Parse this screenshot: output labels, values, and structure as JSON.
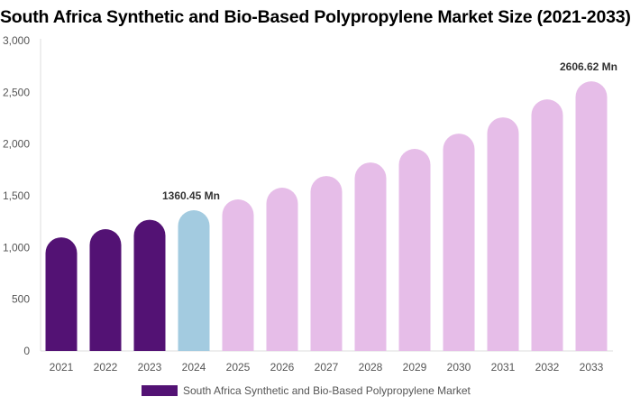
{
  "chart_data": {
    "type": "bar",
    "title": "South Africa Synthetic and Bio-Based Polypropylene Market Size (2021-2033)",
    "categories": [
      "2021",
      "2022",
      "2023",
      "2024",
      "2025",
      "2026",
      "2027",
      "2028",
      "2029",
      "2030",
      "2031",
      "2032",
      "2033"
    ],
    "series": [
      {
        "name": "South Africa Synthetic and Bio-Based Polypropylene Market",
        "values": [
          1098,
          1177,
          1268,
          1360.45,
          1465,
          1578,
          1691,
          1822,
          1953,
          2101,
          2258,
          2432,
          2606.62
        ]
      }
    ],
    "data_labels": {
      "2024": "1360.45 Mn",
      "2033": "2606.62 Mn"
    },
    "ylim": [
      0,
      3000
    ],
    "yticks": [
      0,
      500,
      1000,
      1500,
      2000,
      2500,
      3000
    ],
    "ytick_labels": [
      "0",
      "500",
      "1,000",
      "1,500",
      "2,000",
      "2,500",
      "3,000"
    ],
    "grid": false,
    "legend_position": "bottom",
    "colors": {
      "historical": "#531274",
      "current": "#a3cbe0",
      "forecast": "#e6bde8"
    }
  }
}
